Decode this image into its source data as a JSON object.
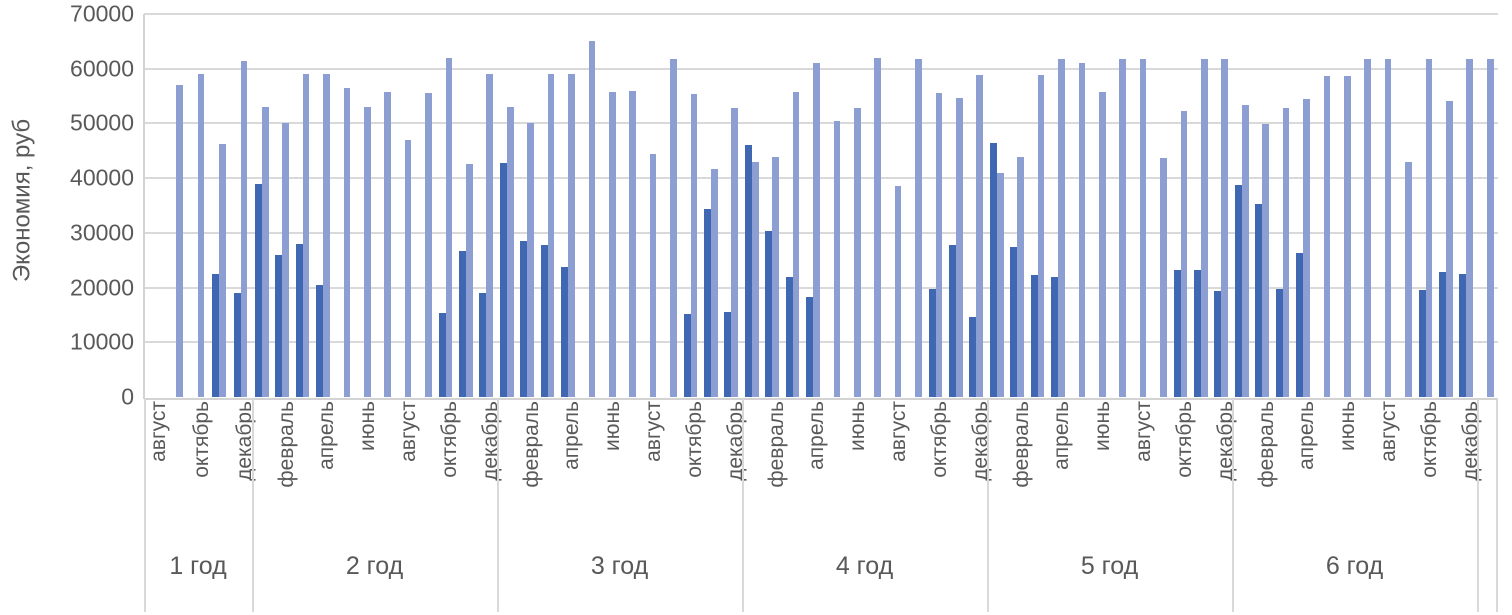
{
  "chart_data": {
    "type": "bar",
    "title": "",
    "ylabel": "Экономия, руб",
    "ylim": [
      0,
      70000
    ],
    "y_ticks": [
      0,
      10000,
      20000,
      30000,
      40000,
      50000,
      60000,
      70000
    ],
    "grid": "horizontal",
    "legend": "none",
    "colors": {
      "dark_series": "#4067b2",
      "light_series": "#8d9ed3",
      "axis_text": "#595959",
      "gridline": "#d9d9d9"
    },
    "series_note": "dark = short winter bars, light = tall monthly bars; null = no bar drawn",
    "groups": [
      {
        "label": "1 год",
        "months": [
          {
            "label": "август",
            "dark": null,
            "light": null
          },
          {
            "label": "",
            "dark": null,
            "light": 57000
          },
          {
            "label": "октябрь",
            "dark": null,
            "light": 59000
          },
          {
            "label": "",
            "dark": 22500,
            "light": 46300
          },
          {
            "label": "декабрь",
            "dark": 19000,
            "light": 61500
          }
        ]
      },
      {
        "label": "2 год",
        "months": [
          {
            "label": "",
            "dark": 39000,
            "light": 53000
          },
          {
            "label": "февраль",
            "dark": 26000,
            "light": 50000
          },
          {
            "label": "",
            "dark": 28000,
            "light": 59000
          },
          {
            "label": "апрель",
            "dark": 20500,
            "light": 59000
          },
          {
            "label": "",
            "dark": null,
            "light": 56500
          },
          {
            "label": "июнь",
            "dark": null,
            "light": 53000
          },
          {
            "label": "",
            "dark": null,
            "light": 55800
          },
          {
            "label": "август",
            "dark": null,
            "light": 47000
          },
          {
            "label": "",
            "dark": null,
            "light": 55600
          },
          {
            "label": "октябрь",
            "dark": 15400,
            "light": 62000
          },
          {
            "label": "",
            "dark": 26700,
            "light": 42500
          },
          {
            "label": "декабрь",
            "dark": 19000,
            "light": 59000
          }
        ]
      },
      {
        "label": "3 год",
        "months": [
          {
            "label": "",
            "dark": 42700,
            "light": 53000
          },
          {
            "label": "февраль",
            "dark": 28600,
            "light": 50000
          },
          {
            "label": "",
            "dark": 27800,
            "light": 59000
          },
          {
            "label": "апрель",
            "dark": 23800,
            "light": 59000
          },
          {
            "label": "",
            "dark": null,
            "light": 65000
          },
          {
            "label": "июнь",
            "dark": null,
            "light": 55800
          },
          {
            "label": "",
            "dark": null,
            "light": 56000
          },
          {
            "label": "август",
            "dark": null,
            "light": 44500
          },
          {
            "label": "",
            "dark": null,
            "light": 61800
          },
          {
            "label": "октябрь",
            "dark": 15200,
            "light": 55400
          },
          {
            "label": "",
            "dark": 34400,
            "light": 41700
          },
          {
            "label": "декабрь",
            "dark": 15500,
            "light": 52800
          }
        ]
      },
      {
        "label": "4 год",
        "months": [
          {
            "label": "",
            "dark": 46000,
            "light": 42900
          },
          {
            "label": "февраль",
            "dark": 30400,
            "light": 43900
          },
          {
            "label": "",
            "dark": 22000,
            "light": 55800
          },
          {
            "label": "апрель",
            "dark": 18300,
            "light": 61000
          },
          {
            "label": "",
            "dark": null,
            "light": 50500
          },
          {
            "label": "июнь",
            "dark": null,
            "light": 52800
          },
          {
            "label": "",
            "dark": null,
            "light": 61900
          },
          {
            "label": "август",
            "dark": null,
            "light": 38500
          },
          {
            "label": "",
            "dark": null,
            "light": 61700
          },
          {
            "label": "октябрь",
            "dark": 19800,
            "light": 55500
          },
          {
            "label": "",
            "dark": 27800,
            "light": 54700
          },
          {
            "label": "декабрь",
            "dark": 14700,
            "light": 58900
          }
        ]
      },
      {
        "label": "5 год",
        "months": [
          {
            "label": "",
            "dark": 46500,
            "light": 40900
          },
          {
            "label": "февраль",
            "dark": 27400,
            "light": 43900
          },
          {
            "label": "",
            "dark": 22300,
            "light": 58900
          },
          {
            "label": "апрель",
            "dark": 22000,
            "light": 61700
          },
          {
            "label": "",
            "dark": null,
            "light": 61100
          },
          {
            "label": "июнь",
            "dark": null,
            "light": 55800
          },
          {
            "label": "",
            "dark": null,
            "light": 61700
          },
          {
            "label": "август",
            "dark": null,
            "light": 61700
          },
          {
            "label": "",
            "dark": null,
            "light": 43600
          },
          {
            "label": "октябрь",
            "dark": 23300,
            "light": 52300
          },
          {
            "label": "",
            "dark": 23300,
            "light": 61700
          },
          {
            "label": "декабрь",
            "dark": 19400,
            "light": 61700
          }
        ]
      },
      {
        "label": "6 год",
        "months": [
          {
            "label": "",
            "dark": 38800,
            "light": 53400
          },
          {
            "label": "февраль",
            "dark": 35300,
            "light": 49900
          },
          {
            "label": "",
            "dark": 19800,
            "light": 52800
          },
          {
            "label": "апрель",
            "dark": 26400,
            "light": 54400
          },
          {
            "label": "",
            "dark": null,
            "light": 58700
          },
          {
            "label": "июнь",
            "dark": null,
            "light": 58700
          },
          {
            "label": "",
            "dark": null,
            "light": 61700
          },
          {
            "label": "август",
            "dark": null,
            "light": 61700
          },
          {
            "label": "",
            "dark": null,
            "light": 43000
          },
          {
            "label": "октябрь",
            "dark": 19600,
            "light": 61800
          },
          {
            "label": "",
            "dark": 22800,
            "light": 54100
          },
          {
            "label": "декабрь",
            "dark": 22400,
            "light": 61800
          }
        ]
      },
      {
        "label": "",
        "months": [
          {
            "label": "",
            "dark": null,
            "light": 61800
          }
        ]
      }
    ]
  }
}
